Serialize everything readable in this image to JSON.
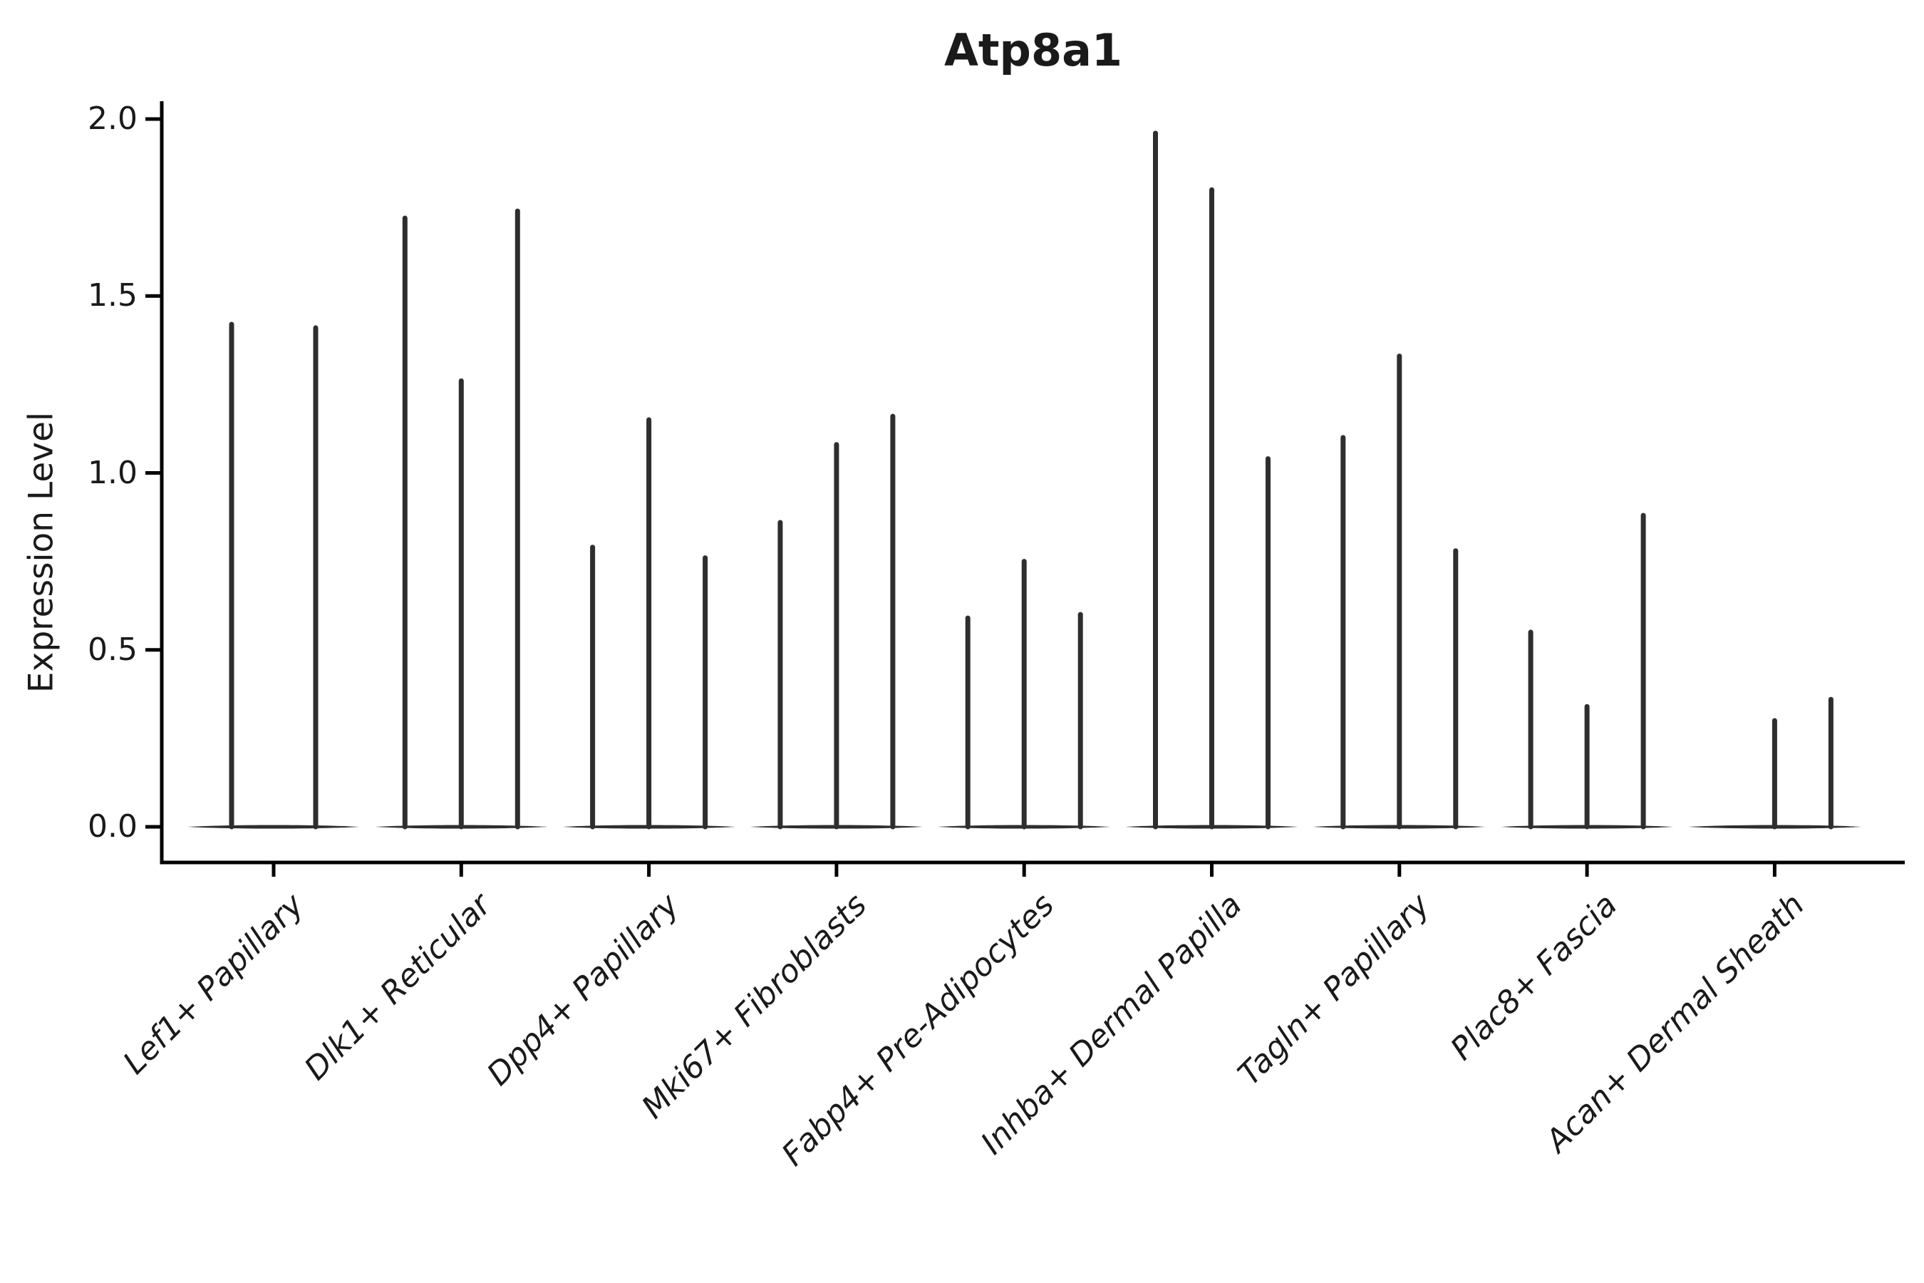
{
  "chart_data": {
    "type": "violin",
    "title": "Atp8a1",
    "xlabel": "",
    "ylabel": "Expression Level",
    "ylim": [
      -0.1,
      2.05
    ],
    "ytick_labels": [
      "0.0",
      "0.5",
      "1.0",
      "1.5",
      "2.0"
    ],
    "ytick_values": [
      0.0,
      0.5,
      1.0,
      1.5,
      2.0
    ],
    "grid": false,
    "legend": "none",
    "categories": [
      "Lef1+ Papillary",
      "Dlk1+ Reticular",
      "Dpp4+ Papillary",
      "Mki67+ Fibroblasts",
      "Fabp4+ Pre-Adipocytes",
      "Inhba+ Dermal Papilla",
      "Tagln+ Papillary",
      "Plac8+ Fascia",
      "Acan+ Dermal Sheath"
    ],
    "groups": [
      {
        "label": "Lef1+ Papillary",
        "violin_max": [
          1.42,
          1.41
        ]
      },
      {
        "label": "Dlk1+ Reticular",
        "violin_max": [
          1.72,
          1.26,
          1.74
        ]
      },
      {
        "label": "Dpp4+ Papillary",
        "violin_max": [
          0.79,
          1.15,
          0.76
        ]
      },
      {
        "label": "Mki67+ Fibroblasts",
        "violin_max": [
          0.86,
          1.08,
          1.16
        ]
      },
      {
        "label": "Fabp4+ Pre-Adipocytes",
        "violin_max": [
          0.59,
          0.75,
          0.6
        ]
      },
      {
        "label": "Inhba+ Dermal Papilla",
        "violin_max": [
          1.96,
          1.8,
          1.04
        ]
      },
      {
        "label": "Tagln+ Papillary",
        "violin_max": [
          1.1,
          1.33,
          0.78
        ]
      },
      {
        "label": "Plac8+ Fascia",
        "violin_max": [
          0.55,
          0.34,
          0.88
        ]
      },
      {
        "label": "Acan+ Dermal Sheath",
        "violin_max": [
          0.0,
          0.3,
          0.36
        ]
      }
    ],
    "colors": {
      "ink": "#000000",
      "violin": "#2e2e2e",
      "text": "#1a1a1a"
    }
  }
}
